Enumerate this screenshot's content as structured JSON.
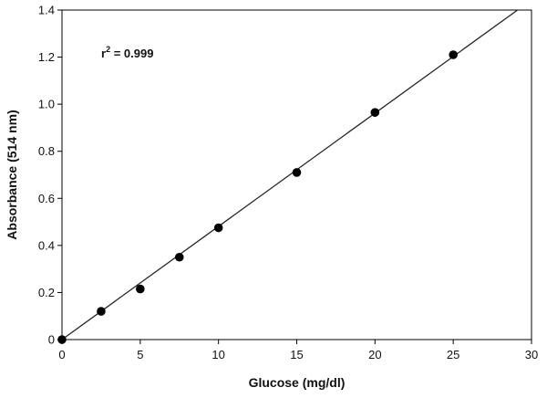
{
  "chart_data": {
    "type": "scatter",
    "title": "",
    "xlabel": "Glucose (mg/dl)",
    "ylabel": "Absorbance (514 nm)",
    "xlim": [
      0,
      30
    ],
    "ylim": [
      0,
      1.4
    ],
    "x_ticks": [
      "0",
      "5",
      "10",
      "15",
      "20",
      "25",
      "30"
    ],
    "y_ticks": [
      "0",
      "0.2",
      "0.4",
      "0.6",
      "0.8",
      "1.0",
      "1.2",
      "1.4"
    ],
    "grid": false,
    "legend": "none",
    "annotation": {
      "base": "r",
      "sup": "2",
      "rest": " = 0.999"
    },
    "series": [
      {
        "x": [
          0,
          2.5,
          5,
          7.5,
          10,
          15,
          20,
          25
        ],
        "y": [
          0,
          0.12,
          0.215,
          0.35,
          0.475,
          0.71,
          0.965,
          1.21
        ]
      }
    ],
    "fit_line": {
      "slope": 0.0481,
      "intercept": 0
    },
    "colors": {
      "marker": "#000000",
      "line": "#222222",
      "axis": "#000000"
    }
  }
}
